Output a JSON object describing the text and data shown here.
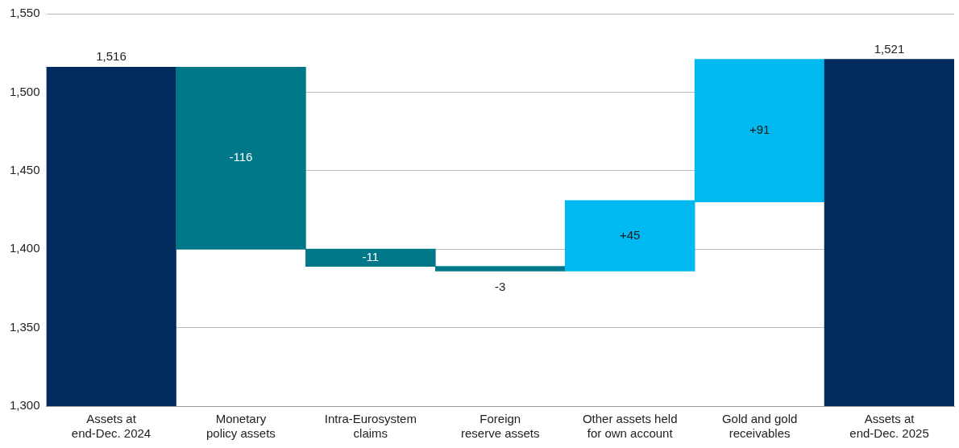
{
  "chart_data": {
    "type": "bar",
    "categories": [
      "Assets at end-Dec. 2024",
      "Monetary policy assets",
      "Intra-Eurosystem claims",
      "Foreign reserve assets",
      "Other assets held for own account",
      "Gold and gold receivables",
      "Assets at end-Dec. 2025"
    ],
    "values": [
      1516,
      -116,
      -11,
      -3,
      45,
      91,
      1521
    ],
    "base": [
      null,
      1516,
      1400,
      1389,
      1386,
      1430,
      null
    ],
    "colors": [
      "#002b5c",
      "#00788a",
      "#00788a",
      "#00788a",
      "#00b9f0",
      "#00b9f0",
      "#002b5c"
    ],
    "value_labels": [
      "1,516",
      "-116",
      "-11",
      "-3",
      "+45",
      "+91",
      "1,521"
    ],
    "ylim": [
      1300,
      1550
    ],
    "yticks": [
      {
        "value": 1300,
        "label": "1,300"
      },
      {
        "value": 1350,
        "label": "1,350"
      },
      {
        "value": 1400,
        "label": "1,400"
      },
      {
        "value": 1450,
        "label": "1,450"
      },
      {
        "value": 1500,
        "label": "1,500"
      },
      {
        "value": 1550,
        "label": "1,550"
      }
    ],
    "grid": "y"
  }
}
